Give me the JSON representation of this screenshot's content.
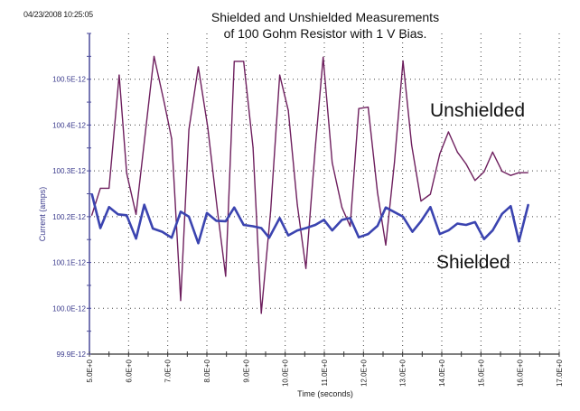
{
  "timestamp": "04/23/2008 10:25:05",
  "chart_data": {
    "type": "line",
    "title": "Shielded and Unshielded Measurements",
    "subtitle": "of 100 Gohm Resistor with 1 V Bias.",
    "xlabel": "Time (seconds)",
    "ylabel": "Current (amps)",
    "xlim": [
      5.0,
      17.0
    ],
    "ylim": [
      9.99e-11,
      1.006e-10
    ],
    "x_ticks": [
      5,
      6,
      7,
      8,
      9,
      10,
      11,
      12,
      13,
      14,
      15,
      16,
      17
    ],
    "x_tick_labels": [
      "5.0E+0",
      "6.0E+0",
      "7.0E+0",
      "8.0E+0",
      "9.0E+0",
      "10.0E+0",
      "11.0E+0",
      "12.0E+0",
      "13.0E+0",
      "14.0E+0",
      "15.0E+0",
      "16.0E+0",
      "17.0E+0"
    ],
    "y_ticks": [
      9.99e-11,
      1e-10,
      1.001e-10,
      1.002e-10,
      1.003e-10,
      1.004e-10,
      1.005e-10
    ],
    "y_tick_labels": [
      "99.9E-12",
      "100.0E-12",
      "100.1E-12",
      "100.2E-12",
      "100.3E-12",
      "100.4E-12",
      "100.5E-12"
    ],
    "grid": "dotted",
    "colors": {
      "unshielded": "#6e1f5e",
      "shielded": "#3b44b0",
      "axis": "#4a4a9a"
    },
    "series": [
      {
        "name": "Unshielded",
        "x": [
          5.06,
          5.28,
          5.5,
          5.76,
          5.95,
          6.19,
          6.65,
          6.91,
          7.1,
          7.33,
          7.54,
          7.78,
          8.02,
          8.27,
          8.48,
          8.7,
          8.94,
          9.18,
          9.39,
          9.63,
          9.86,
          10.08,
          10.31,
          10.53,
          10.77,
          10.97,
          11.2,
          11.45,
          11.66,
          11.88,
          12.12,
          12.36,
          12.57,
          12.79,
          13.01,
          13.23,
          13.47,
          13.71,
          13.95,
          14.17,
          14.4,
          14.62,
          14.85,
          15.08,
          15.3,
          15.54,
          15.76,
          15.97,
          16.2
        ],
        "y": [
          1.00203e-10,
          1.00262e-10,
          1.00262e-10,
          1.00509e-10,
          1.00295e-10,
          1.00205e-10,
          1.0055e-10,
          1.00449e-10,
          1.0037e-10,
          1.00017e-10,
          1.0039e-10,
          1.00527e-10,
          1.00396e-10,
          1.00213e-10,
          1.0007e-10,
          1.00539e-10,
          1.00539e-10,
          1.00351e-10,
          9.9989e-11,
          1.00213e-10,
          1.00509e-10,
          1.00432e-10,
          1.00226e-10,
          1.00087e-10,
          1.00351e-10,
          1.00548e-10,
          1.00318e-10,
          1.0022e-10,
          1.00179e-10,
          1.00436e-10,
          1.00439e-10,
          1.00252e-10,
          1.00138e-10,
          1.00318e-10,
          1.0054e-10,
          1.00357e-10,
          1.00234e-10,
          1.00249e-10,
          1.00337e-10,
          1.00385e-10,
          1.00341e-10,
          1.00315e-10,
          1.00279e-10,
          1.00298e-10,
          1.00341e-10,
          1.00299e-10,
          1.0029e-10,
          1.00296e-10,
          1.00296e-10
        ]
      },
      {
        "name": "Shielded",
        "x": [
          5.06,
          5.28,
          5.5,
          5.73,
          5.95,
          6.19,
          6.4,
          6.62,
          6.86,
          7.1,
          7.33,
          7.54,
          7.78,
          8.0,
          8.24,
          8.48,
          8.7,
          8.94,
          9.18,
          9.39,
          9.59,
          9.86,
          10.08,
          10.31,
          10.53,
          10.77,
          10.99,
          11.2,
          11.45,
          11.66,
          11.88,
          12.12,
          12.36,
          12.57,
          12.79,
          13.01,
          13.25,
          13.47,
          13.71,
          13.95,
          14.17,
          14.4,
          14.62,
          14.85,
          15.08,
          15.3,
          15.54,
          15.76,
          15.97,
          16.21
        ],
        "y": [
          1.0025e-10,
          1.00175e-10,
          1.00221e-10,
          1.00205e-10,
          1.00203e-10,
          1.00152e-10,
          1.00226e-10,
          1.00174e-10,
          1.00167e-10,
          1.00154e-10,
          1.00211e-10,
          1.002e-10,
          1.00142e-10,
          1.00208e-10,
          1.00191e-10,
          1.0019e-10,
          1.0022e-10,
          1.00182e-10,
          1.00179e-10,
          1.00175e-10,
          1.00154e-10,
          1.00197e-10,
          1.00159e-10,
          1.0017e-10,
          1.00175e-10,
          1.00182e-10,
          1.00193e-10,
          1.0017e-10,
          1.00193e-10,
          1.00197e-10,
          1.00155e-10,
          1.00162e-10,
          1.0018e-10,
          1.0022e-10,
          1.0021e-10,
          1.002e-10,
          1.00167e-10,
          1.0019e-10,
          1.00221e-10,
          1.00162e-10,
          1.0017e-10,
          1.00185e-10,
          1.00182e-10,
          1.00188e-10,
          1.00151e-10,
          1.0017e-10,
          1.00206e-10,
          1.00223e-10,
          1.00146e-10,
          1.00227e-10
        ]
      }
    ]
  }
}
